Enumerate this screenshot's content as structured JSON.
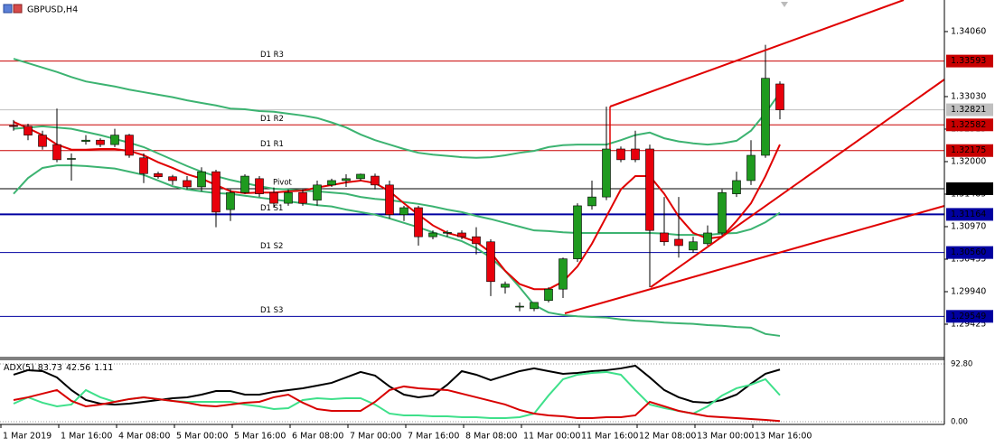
{
  "chart_data": [
    {
      "type": "candlestick",
      "title": "GBPUSD,H4",
      "categories": [
        "1 Mar 2019",
        null,
        null,
        null,
        "1 Mar 16:00",
        null,
        null,
        null,
        "4 Mar 08:00",
        null,
        null,
        null,
        "5 Mar 00:00",
        null,
        null,
        null,
        "5 Mar 16:00",
        null,
        null,
        null,
        "6 Mar 08:00",
        null,
        null,
        null,
        "7 Mar 00:00",
        null,
        null,
        null,
        "7 Mar 16:00",
        null,
        null,
        null,
        "8 Mar 08:00",
        null,
        null,
        null,
        "11 Mar 00:00",
        null,
        null,
        null,
        "11 Mar 16:00",
        null,
        null,
        null,
        "12 Mar 08:00",
        null,
        null,
        null,
        "13 Mar 00:00",
        null,
        null,
        null,
        "13 Mar 16:00",
        null
      ],
      "open": [
        1.3257,
        1.3256,
        1.3242,
        1.3227,
        1.3204,
        1.3232,
        1.3234,
        1.3227,
        1.3242,
        1.3206,
        1.3181,
        1.3176,
        1.317,
        1.316,
        1.3184,
        1.3124,
        1.3151,
        1.3173,
        1.3151,
        1.3134,
        1.3151,
        1.3139,
        1.3163,
        1.317,
        1.3173,
        1.3177,
        1.3163,
        1.3116,
        1.3127,
        1.3081,
        1.3087,
        1.3087,
        1.3081,
        1.3073,
        1.3001,
        1.297,
        1.2967,
        1.298,
        1.2998,
        1.3046,
        1.313,
        1.3144,
        1.322,
        1.322,
        1.322,
        1.3087,
        1.3077,
        1.306,
        1.307,
        1.3087,
        1.3149,
        1.317,
        1.321,
        1.3323
      ],
      "high": [
        1.3266,
        1.326,
        1.3249,
        1.3284,
        1.3213,
        1.3242,
        1.3237,
        1.3252,
        1.3244,
        1.3213,
        1.3184,
        1.3179,
        1.3177,
        1.3191,
        1.3187,
        1.3156,
        1.318,
        1.3177,
        1.3159,
        1.3156,
        1.3156,
        1.317,
        1.3173,
        1.318,
        1.3181,
        1.3181,
        1.317,
        1.313,
        1.313,
        1.3091,
        1.3091,
        1.3091,
        1.3096,
        1.3077,
        1.301,
        1.2977,
        1.2977,
        1.3001,
        1.3048,
        1.3134,
        1.317,
        1.3287,
        1.3224,
        1.3249,
        1.3227,
        1.3144,
        1.3144,
        1.3081,
        1.3099,
        1.3156,
        1.3184,
        1.3234,
        1.3385,
        1.3327
      ],
      "low": [
        1.3249,
        1.3234,
        1.3219,
        1.3199,
        1.317,
        1.3227,
        1.3223,
        1.3223,
        1.3206,
        1.3166,
        1.3173,
        1.3163,
        1.3156,
        1.3153,
        1.3096,
        1.3106,
        1.3149,
        1.3144,
        1.3127,
        1.313,
        1.313,
        1.313,
        1.316,
        1.316,
        1.317,
        1.3156,
        1.311,
        1.3106,
        1.3067,
        1.3077,
        1.3081,
        1.3077,
        1.3053,
        1.2987,
        1.2991,
        1.2963,
        1.2963,
        1.2977,
        1.2984,
        1.3041,
        1.3124,
        1.3139,
        1.3199,
        1.3199,
        1.3001,
        1.3067,
        1.3048,
        1.3056,
        1.3067,
        1.3081,
        1.3144,
        1.3163,
        1.3206,
        1.3267
      ],
      "close": [
        1.3256,
        1.3242,
        1.3224,
        1.3203,
        1.3205,
        1.3234,
        1.3227,
        1.3242,
        1.321,
        1.3181,
        1.3176,
        1.317,
        1.316,
        1.3184,
        1.312,
        1.3151,
        1.3177,
        1.3149,
        1.3134,
        1.3151,
        1.3134,
        1.3163,
        1.317,
        1.3173,
        1.318,
        1.3163,
        1.3116,
        1.3127,
        1.3081,
        1.3087,
        1.3088,
        1.3081,
        1.307,
        1.301,
        1.3006,
        1.2971,
        1.2977,
        1.2998,
        1.3046,
        1.313,
        1.3144,
        1.322,
        1.3203,
        1.3203,
        1.3091,
        1.3073,
        1.3067,
        1.3073,
        1.3087,
        1.3151,
        1.317,
        1.321,
        1.3332,
        1.3282
      ],
      "up_color": "#1f9a1f",
      "down_color": "#e8000b",
      "wick_color": "#000000",
      "overlays": [
        {
          "color": "#3cb371",
          "values": [
            1.3363,
            1.3356,
            1.3349,
            1.3342,
            1.3334,
            1.3327,
            1.3323,
            1.3319,
            1.3314,
            1.331,
            1.3306,
            1.3302,
            1.3297,
            1.3293,
            1.3289,
            1.3284,
            1.3283,
            1.328,
            1.3279,
            1.3276,
            1.3273,
            1.3269,
            1.3262,
            1.3254,
            1.3243,
            1.3234,
            1.3227,
            1.322,
            1.3214,
            1.3211,
            1.3209,
            1.3207,
            1.3206,
            1.3207,
            1.321,
            1.3214,
            1.3217,
            1.3223,
            1.3226,
            1.3227,
            1.3227,
            1.3227,
            1.3234,
            1.3242,
            1.3246,
            1.3237,
            1.3232,
            1.3229,
            1.3227,
            1.3229,
            1.3233,
            1.3249,
            1.3277,
            1.3309
          ]
        },
        {
          "color": "#3cb371",
          "values": [
            1.3252,
            1.3254,
            1.3256,
            1.3254,
            1.3252,
            1.3247,
            1.3242,
            1.3236,
            1.323,
            1.3223,
            1.3213,
            1.3203,
            1.3193,
            1.3184,
            1.3177,
            1.3171,
            1.3166,
            1.3161,
            1.3157,
            1.3156,
            1.3154,
            1.3153,
            1.3151,
            1.3149,
            1.3144,
            1.3141,
            1.3139,
            1.3136,
            1.3133,
            1.3129,
            1.3124,
            1.312,
            1.3114,
            1.3109,
            1.3103,
            1.3097,
            1.3091,
            1.309,
            1.3088,
            1.3087,
            1.3087,
            1.3087,
            1.3087,
            1.3087,
            1.3087,
            1.3086,
            1.3084,
            1.3084,
            1.3084,
            1.3086,
            1.3087,
            1.3093,
            1.3104,
            1.3119
          ]
        },
        {
          "color": "#3cb371",
          "values": [
            1.3149,
            1.3174,
            1.319,
            1.3194,
            1.3194,
            1.3193,
            1.3191,
            1.3189,
            1.3184,
            1.3179,
            1.317,
            1.3161,
            1.3156,
            1.3153,
            1.315,
            1.3149,
            1.3146,
            1.3143,
            1.314,
            1.3137,
            1.3134,
            1.3131,
            1.3129,
            1.3124,
            1.312,
            1.3116,
            1.311,
            1.3103,
            1.3096,
            1.3088,
            1.3081,
            1.3074,
            1.3063,
            1.3048,
            1.3027,
            1.3001,
            1.2973,
            1.2961,
            1.2957,
            1.2955,
            1.2954,
            1.2953,
            1.295,
            1.2948,
            1.2947,
            1.2945,
            1.2944,
            1.2943,
            1.2941,
            1.294,
            1.2938,
            1.2937,
            1.2927,
            1.2924
          ]
        },
        {
          "color": "#e00000",
          "values": [
            1.3263,
            1.3253,
            1.3242,
            1.3227,
            1.3219,
            1.3219,
            1.322,
            1.322,
            1.3217,
            1.321,
            1.3199,
            1.319,
            1.318,
            1.3173,
            1.3163,
            1.3153,
            1.315,
            1.3151,
            1.3151,
            1.3153,
            1.3154,
            1.3159,
            1.3163,
            1.3167,
            1.317,
            1.3166,
            1.3153,
            1.3134,
            1.3116,
            1.3099,
            1.3087,
            1.3081,
            1.3073,
            1.3056,
            1.3027,
            1.3006,
            1.2998,
            1.2998,
            1.301,
            1.3034,
            1.307,
            1.3113,
            1.3156,
            1.3177,
            1.3177,
            1.3149,
            1.3113,
            1.3087,
            1.3078,
            1.3081,
            1.3106,
            1.3134,
            1.3177,
            1.3227
          ]
        }
      ],
      "levels": [
        {
          "name": "D1 R3",
          "value": 1.33593,
          "color": "#c80000"
        },
        {
          "name": "D1 R2",
          "value": 1.32582,
          "color": "#c80000"
        },
        {
          "name": "D1 R1",
          "value": 1.32175,
          "color": "#c80000"
        },
        {
          "name": "Pivot",
          "value": 1.31571,
          "color": "#000000"
        },
        {
          "name": "D1 S1",
          "value": 1.31164,
          "color": "#0000a0"
        },
        {
          "name": "D1 S2",
          "value": 1.3056,
          "label": "1.30560",
          "color": "#0000a0"
        },
        {
          "name": "D1 S3",
          "value": 1.29549,
          "color": "#0000a0"
        }
      ],
      "bid": {
        "value": 1.32821,
        "color": "#c0c0c0"
      },
      "ylim": [
        1.2891,
        1.3456
      ],
      "yticks": [
        {
          "value": 1.3406,
          "label": "1.34060"
        },
        {
          "value": 1.3303,
          "label": "1.33030"
        },
        1.32515,
        {
          "value": 1.32,
          "label": "1.32000"
        },
        1.31485,
        {
          "value": 1.3097,
          "label": "1.30970"
        },
        1.30455,
        {
          "value": 1.2994,
          "label": "1.29940"
        },
        1.29425
      ],
      "grid": false
    },
    {
      "type": "line",
      "title": "ADX(5)",
      "series": [
        {
          "color": "#000000",
          "values": [
            75.4,
            82.7,
            81.2,
            71.1,
            50.8,
            34.8,
            29.0,
            27.6,
            29.0,
            31.9,
            34.8,
            37.7,
            39.2,
            43.5,
            49.3,
            49.3,
            43.5,
            43.5,
            47.9,
            50.8,
            53.7,
            58.0,
            62.4,
            71.1,
            79.8,
            74.0,
            56.6,
            43.5,
            39.2,
            42.1,
            59.5,
            81.2,
            75.4,
            66.7,
            74.0,
            81.2,
            85.6,
            81.2,
            76.9,
            78.3,
            81.2,
            82.7,
            85.6,
            89.9,
            71.1,
            50.8,
            39.2,
            31.9,
            30.5,
            34.8,
            43.5,
            60.9,
            76.9,
            83.73
          ]
        },
        {
          "color": "#3ee08a",
          "values": [
            29.0,
            39.2,
            30.5,
            24.7,
            27.6,
            50.8,
            39.2,
            31.9,
            36.3,
            39.2,
            36.3,
            33.4,
            31.9,
            31.9,
            31.9,
            31.9,
            27.6,
            24.7,
            20.3,
            21.8,
            34.8,
            37.7,
            36.3,
            37.7,
            37.7,
            27.6,
            13.1,
            10.2,
            10.2,
            8.7,
            8.7,
            7.3,
            7.3,
            5.8,
            5.8,
            7.3,
            13.1,
            42.1,
            68.2,
            75.4,
            78.3,
            79.8,
            75.4,
            50.8,
            27.6,
            21.8,
            17.4,
            13.1,
            24.7,
            42.1,
            53.7,
            59.5,
            68.2,
            42.56
          ]
        },
        {
          "color": "#d80000",
          "values": [
            34.8,
            39.2,
            45.0,
            50.8,
            33.4,
            24.7,
            27.6,
            31.9,
            36.3,
            39.2,
            36.3,
            33.4,
            30.5,
            26.1,
            24.7,
            27.6,
            30.5,
            31.9,
            39.2,
            43.5,
            30.5,
            20.3,
            17.4,
            17.4,
            17.4,
            31.9,
            50.8,
            56.6,
            53.7,
            52.2,
            50.8,
            45.0,
            39.2,
            33.4,
            27.6,
            18.9,
            13.1,
            10.2,
            8.7,
            5.8,
            5.8,
            7.3,
            7.3,
            10.2,
            31.9,
            24.7,
            17.4,
            13.1,
            8.7,
            7.3,
            5.8,
            4.4,
            2.9,
            1.11
          ]
        }
      ],
      "ylim": [
        0,
        100
      ],
      "yticks": [
        {
          "value": 92.8,
          "label": "92.80"
        },
        {
          "value": 0,
          "label": "0.00"
        }
      ]
    }
  ]
}
